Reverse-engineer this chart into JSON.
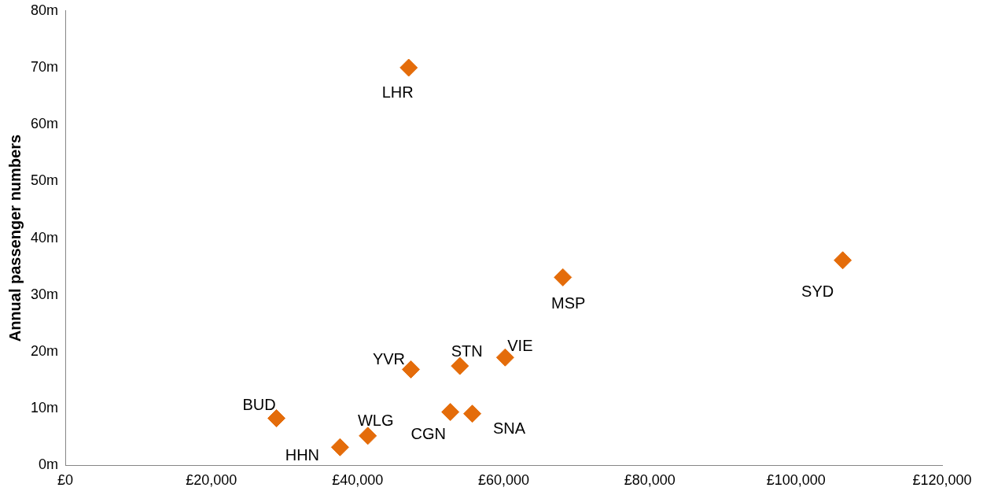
{
  "chart_data": {
    "type": "scatter",
    "ylabel": "Annual passenger numbers",
    "x": [
      47000,
      106400,
      68100,
      60200,
      54000,
      47300,
      52700,
      55700,
      28900,
      41400,
      37600
    ],
    "values": [
      70,
      36.1,
      33.1,
      19.0,
      17.5,
      16.9,
      9.4,
      9.1,
      8.3,
      5.2,
      3.2
    ],
    "color": "#e46c0a",
    "marker": "diamond",
    "grid": false,
    "legend": false,
    "xlim": [
      0,
      120000
    ],
    "xticks": [
      {
        "value": 0,
        "label": "£0"
      },
      {
        "value": 20000,
        "label": "£20,000"
      },
      {
        "value": 40000,
        "label": "£40,000"
      },
      {
        "value": 60000,
        "label": "£60,000"
      },
      {
        "value": 80000,
        "label": "£80,000"
      },
      {
        "value": 100000,
        "label": "£100,000"
      },
      {
        "value": 120000,
        "label": "£120,000"
      }
    ],
    "ylim": [
      0,
      80
    ],
    "yticks": [
      {
        "value": 0,
        "label": "0m"
      },
      {
        "value": 10,
        "label": "10m"
      },
      {
        "value": 20,
        "label": "20m"
      },
      {
        "value": 30,
        "label": "30m"
      },
      {
        "value": 40,
        "label": "40m"
      },
      {
        "value": 50,
        "label": "50m"
      },
      {
        "value": 60,
        "label": "60m"
      },
      {
        "value": 70,
        "label": "70m"
      },
      {
        "value": 80,
        "label": "80m"
      }
    ],
    "annotations": [
      {
        "text": "LHR",
        "x": 47000,
        "y": 70
      },
      {
        "text": "SYD",
        "x": 106400,
        "y": 36.1
      },
      {
        "text": "MSP",
        "x": 68100,
        "y": 33.1
      },
      {
        "text": "VIE",
        "x": 60200,
        "y": 19.0
      },
      {
        "text": "STN",
        "x": 54000,
        "y": 17.5
      },
      {
        "text": "YVR",
        "x": 47300,
        "y": 16.9
      },
      {
        "text": "CGN",
        "x": 52700,
        "y": 9.4
      },
      {
        "text": "SNA",
        "x": 55700,
        "y": 9.1
      },
      {
        "text": "BUD",
        "x": 28900,
        "y": 8.3
      },
      {
        "text": "WLG",
        "x": 41400,
        "y": 5.2
      },
      {
        "text": "HHN",
        "x": 37600,
        "y": 3.2
      }
    ]
  }
}
